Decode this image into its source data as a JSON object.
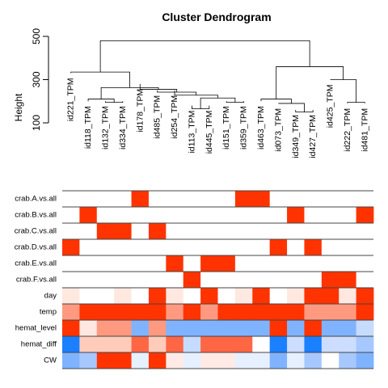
{
  "chart_data": {
    "type": "heatmap",
    "title": "Cluster Dendrogram",
    "dendrogram": {
      "ylabel": "Height",
      "yticks": [
        100,
        300,
        500
      ],
      "ylim": [
        100,
        520
      ],
      "leaves": [
        "id221_TPM",
        "id118_TPM",
        "id132_TPM",
        "id334_TPM",
        "id178_TPM",
        "id485_TPM",
        "id254_TPM",
        "id113_TPM",
        "id445_TPM",
        "id151_TPM",
        "id359_TPM",
        "id463_TPM",
        "id073_TPM",
        "id349_TPM",
        "id427_TPM",
        "id425_TPM",
        "id222_TPM",
        "id481_TPM"
      ],
      "leaf_heights": [
        330,
        200,
        200,
        200,
        280,
        250,
        250,
        180,
        180,
        200,
        200,
        200,
        190,
        160,
        160,
        300,
        190,
        190
      ],
      "merges": [
        {
          "a": 2,
          "b": 3,
          "h": 195
        },
        {
          "a": 1,
          "b": "m0",
          "h": 210
        },
        {
          "a": 7,
          "b": 8,
          "h": 165
        },
        {
          "a": 9,
          "b": 10,
          "h": 195
        },
        {
          "a": "m2",
          "b": "m3",
          "h": 215
        },
        {
          "a": 6,
          "b": "m4",
          "h": 228
        },
        {
          "a": 5,
          "b": "m5",
          "h": 242
        },
        {
          "a": 4,
          "b": "m6",
          "h": 255
        },
        {
          "a": "m1",
          "b": "m7",
          "h": 263
        },
        {
          "a": 0,
          "b": "m8",
          "h": 335
        },
        {
          "a": 13,
          "b": 14,
          "h": 150
        },
        {
          "a": 12,
          "b": "m10",
          "h": 190
        },
        {
          "a": 11,
          "b": "m11",
          "h": 210
        },
        {
          "a": 16,
          "b": 17,
          "h": 195
        },
        {
          "a": 15,
          "b": "m13",
          "h": 300
        },
        {
          "a": "m12",
          "b": "m14",
          "h": 360
        },
        {
          "a": "m9",
          "b": "m15",
          "h": 480
        }
      ]
    },
    "heatmap": {
      "rows": [
        "crab.A.vs.all",
        "crab.B.vs.all",
        "crab.C.vs.all",
        "crab.D.vs.all",
        "crab.E.vs.all",
        "crab.F.vs.all",
        "day",
        "temp",
        "hemat_level",
        "hemat_diff",
        "CW"
      ],
      "colors": [
        [
          "#ffffff",
          "#ffffff",
          "#ffffff",
          "#ffffff",
          "#ff3300",
          "#ffffff",
          "#ffffff",
          "#ffffff",
          "#ffffff",
          "#ffffff",
          "#ff3300",
          "#ff3300",
          "#ffffff",
          "#ffffff",
          "#ffffff",
          "#ffffff",
          "#ffffff",
          "#ffffff"
        ],
        [
          "#ffffff",
          "#ff3300",
          "#ffffff",
          "#ffffff",
          "#ffffff",
          "#ffffff",
          "#ffffff",
          "#ffffff",
          "#ffffff",
          "#ffffff",
          "#ffffff",
          "#ffffff",
          "#ffffff",
          "#ff3300",
          "#ffffff",
          "#ffffff",
          "#ffffff",
          "#ff3300"
        ],
        [
          "#ffffff",
          "#ffffff",
          "#ff3300",
          "#ff3300",
          "#ffffff",
          "#ff3300",
          "#ffffff",
          "#ffffff",
          "#ffffff",
          "#ffffff",
          "#ffffff",
          "#ffffff",
          "#ffffff",
          "#ffffff",
          "#ffffff",
          "#ffffff",
          "#ffffff",
          "#ffffff"
        ],
        [
          "#ff3300",
          "#ffffff",
          "#ffffff",
          "#ffffff",
          "#ffffff",
          "#ffffff",
          "#ffffff",
          "#ffffff",
          "#ffffff",
          "#ffffff",
          "#ffffff",
          "#ffffff",
          "#ff3300",
          "#ffffff",
          "#ff3300",
          "#ffffff",
          "#ffffff",
          "#ffffff"
        ],
        [
          "#ffffff",
          "#ffffff",
          "#ffffff",
          "#ffffff",
          "#ffffff",
          "#ffffff",
          "#ff3300",
          "#ffffff",
          "#ff3300",
          "#ff3300",
          "#ffffff",
          "#ffffff",
          "#ffffff",
          "#ffffff",
          "#ffffff",
          "#ffffff",
          "#ffffff",
          "#ffffff"
        ],
        [
          "#ffffff",
          "#ffffff",
          "#ffffff",
          "#ffffff",
          "#ffffff",
          "#ffffff",
          "#ffffff",
          "#ff3300",
          "#ffffff",
          "#ffffff",
          "#ffffff",
          "#ffffff",
          "#ffffff",
          "#ffffff",
          "#ffffff",
          "#ff3300",
          "#ff3300",
          "#ffffff"
        ],
        [
          "#ffe8e0",
          "#ffffff",
          "#ffffff",
          "#ffe8e0",
          "#ffffff",
          "#ff3300",
          "#ffe8e0",
          "#ffffff",
          "#ff3300",
          "#ffffff",
          "#ffe8e0",
          "#ff3300",
          "#ffffff",
          "#ffe8e0",
          "#ff3300",
          "#ff3300",
          "#ffe8e0",
          "#ff3300"
        ],
        [
          "#ff9a80",
          "#ff3300",
          "#ff3300",
          "#ff3300",
          "#ff3300",
          "#ff3300",
          "#ff9a80",
          "#ff3300",
          "#ff9a80",
          "#ff3300",
          "#ff3300",
          "#ff3300",
          "#ff3300",
          "#ff3300",
          "#ff9a80",
          "#ff9a80",
          "#ff9a80",
          "#ff3300"
        ],
        [
          "#ff3300",
          "#ffe8e0",
          "#ff9a80",
          "#ff9a80",
          "#80b3ff",
          "#ff9a80",
          "#80b3ff",
          "#80b3ff",
          "#80b3ff",
          "#80b3ff",
          "#80b3ff",
          "#80b3ff",
          "#ff3300",
          "#80b3ff",
          "#ff3300",
          "#80b3ff",
          "#80b3ff",
          "#c6dcff"
        ],
        [
          "#1a80ff",
          "#ffccbb",
          "#ffccbb",
          "#ffccbb",
          "#ff6644",
          "#ffccbb",
          "#ff6644",
          "#c6dcff",
          "#ff6644",
          "#ff6644",
          "#ff6644",
          "#ffffff",
          "#1a80ff",
          "#ccddff",
          "#1a80ff",
          "#ccddff",
          "#ccddff",
          "#a6c8ff"
        ],
        [
          "#80b3ff",
          "#a6c8ff",
          "#ff3300",
          "#ff3300",
          "#e6f0ff",
          "#ff3300",
          "#ffeae6",
          "#e6f0ff",
          "#ffeae6",
          "#ffeae6",
          "#e6f0ff",
          "#e6f0ff",
          "#80b3ff",
          "#e6f0ff",
          "#a6c8ff",
          "#ffffff",
          "#a6c8ff",
          "#80b3ff"
        ]
      ]
    }
  }
}
